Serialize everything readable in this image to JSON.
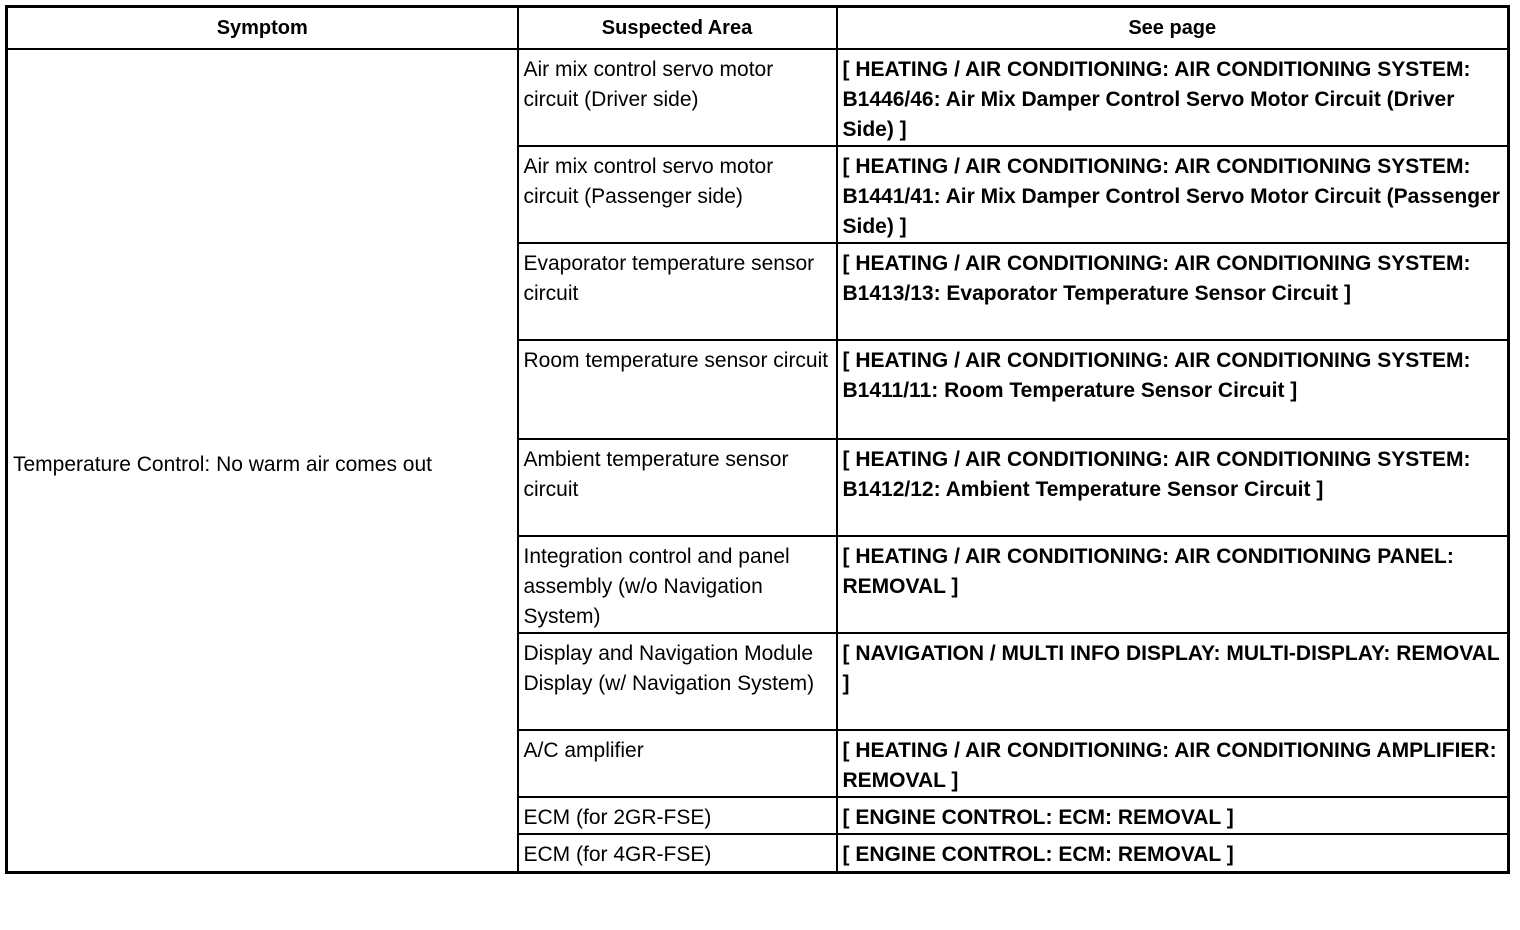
{
  "headers": {
    "symptom": "Symptom",
    "area": "Suspected Area",
    "page": "See page"
  },
  "symptom": "Temperature Control: No warm air comes out",
  "rows": [
    {
      "area": "Air mix control servo motor circuit (Driver side)",
      "page": "[ HEATING / AIR CONDITIONING: AIR CONDITIONING SYSTEM: B1446/46: Air Mix Damper Control Servo Motor Circuit (Driver Side) ]"
    },
    {
      "area": "Air mix control servo motor circuit (Passenger side)",
      "page": "[ HEATING / AIR CONDITIONING: AIR CONDITIONING SYSTEM: B1441/41: Air Mix Damper Control Servo Motor Circuit (Passenger Side) ]"
    },
    {
      "area": "Evaporator temperature sensor circuit",
      "page": "[ HEATING / AIR CONDITIONING: AIR CONDITIONING SYSTEM: B1413/13: Evaporator Temperature Sensor Circuit ]"
    },
    {
      "area": "Room temperature sensor circuit",
      "page": "[ HEATING / AIR CONDITIONING: AIR CONDITIONING SYSTEM: B1411/11: Room Temperature Sensor Circuit ]"
    },
    {
      "area": "Ambient temperature sensor circuit",
      "page": "[ HEATING / AIR CONDITIONING: AIR CONDITIONING SYSTEM: B1412/12: Ambient Temperature Sensor Circuit ]"
    },
    {
      "area": "Integration control and panel assembly (w/o Navigation System)",
      "page": "[ HEATING / AIR CONDITIONING: AIR CONDITIONING PANEL: REMOVAL ]"
    },
    {
      "area": "Display and Navigation Module Display (w/ Navigation System)",
      "page": "[ NAVIGATION / MULTI INFO DISPLAY: MULTI-DISPLAY: REMOVAL ]"
    },
    {
      "area": "A/C amplifier",
      "page": "[ HEATING / AIR CONDITIONING: AIR CONDITIONING AMPLIFIER: REMOVAL ]"
    },
    {
      "area": "ECM (for 2GR-FSE)",
      "page": "[ ENGINE CONTROL: ECM: REMOVAL ]"
    },
    {
      "area": "ECM (for 4GR-FSE)",
      "page": "[ ENGINE CONTROL: ECM: REMOVAL ]"
    }
  ]
}
